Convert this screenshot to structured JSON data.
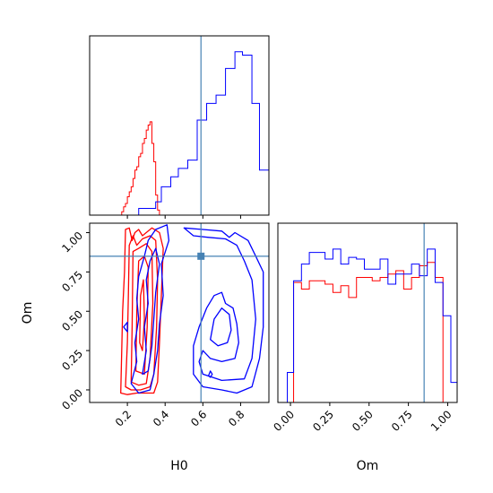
{
  "chart_data": {
    "type": "corner",
    "truth": {
      "H0": 0.59,
      "Om": 0.85,
      "color": "#4682b4"
    },
    "colors": {
      "series_a": "#ff0000",
      "series_b": "#0000ff",
      "truth": "#4682b4"
    },
    "panels": [
      {
        "id": "hist-H0",
        "type": "histogram",
        "xlim": [
          0.0,
          0.95
        ],
        "xlabel": "",
        "xticks": [
          0.2,
          0.4,
          0.6,
          0.8
        ],
        "show_xticklabels": false,
        "series": [
          {
            "color": "#ff0000",
            "bins": [
              0.16,
              0.17,
              0.18,
              0.19,
              0.2,
              0.21,
              0.22,
              0.23,
              0.24,
              0.25,
              0.26,
              0.27,
              0.28,
              0.29,
              0.3,
              0.31,
              0.32,
              0.33,
              0.34,
              0.35,
              0.36,
              0.37
            ],
            "heights": [
              0.0,
              0.02,
              0.05,
              0.07,
              0.11,
              0.14,
              0.17,
              0.22,
              0.27,
              0.29,
              0.35,
              0.37,
              0.43,
              0.46,
              0.51,
              0.54,
              0.56,
              0.43,
              0.32,
              0.12,
              0.03
            ]
          },
          {
            "color": "#0000ff",
            "bins": [
              0.17,
              0.26,
              0.35,
              0.38,
              0.43,
              0.47,
              0.52,
              0.57,
              0.62,
              0.67,
              0.72,
              0.77,
              0.81,
              0.86,
              0.9,
              0.95
            ],
            "heights": [
              0.0,
              0.04,
              0.08,
              0.17,
              0.23,
              0.28,
              0.33,
              0.57,
              0.67,
              0.72,
              0.88,
              0.98,
              0.96,
              0.67,
              0.27,
              0.05
            ]
          }
        ]
      },
      {
        "id": "contour-H0-Om",
        "type": "contour",
        "xlim": [
          0.0,
          0.95
        ],
        "ylim": [
          -0.08,
          1.06
        ],
        "xlabel": "H0",
        "ylabel": "Om",
        "xticks": [
          0.2,
          0.4,
          0.6,
          0.8
        ],
        "xticklabels": [
          "0.2",
          "0.4",
          "0.6",
          "0.8"
        ],
        "yticks": [
          0.0,
          0.25,
          0.5,
          0.75,
          1.0
        ],
        "yticklabels": [
          "0.00",
          "0.25",
          "0.50",
          "0.75",
          "1.00"
        ],
        "series": [
          {
            "color": "#ff0000",
            "contours": [
              [
                [
                  0.165,
                  -0.02
                ],
                [
                  0.17,
                  0.25
                ],
                [
                  0.175,
                  0.5
                ],
                [
                  0.185,
                  0.75
                ],
                [
                  0.19,
                  1.02
                ],
                [
                  0.21,
                  1.03
                ],
                [
                  0.225,
                  0.95
                ],
                [
                  0.24,
                  1.0
                ],
                [
                  0.26,
                  1.02
                ],
                [
                  0.28,
                  0.98
                ],
                [
                  0.31,
                  1.01
                ],
                [
                  0.33,
                  1.03
                ],
                [
                  0.37,
                  1.0
                ],
                [
                  0.39,
                  0.9
                ],
                [
                  0.38,
                  0.6
                ],
                [
                  0.37,
                  0.3
                ],
                [
                  0.36,
                  0.05
                ],
                [
                  0.34,
                  -0.02
                ],
                [
                  0.3,
                  -0.02
                ],
                [
                  0.25,
                  -0.02
                ],
                [
                  0.2,
                  -0.03
                ],
                [
                  0.165,
                  -0.02
                ]
              ],
              [
                [
                  0.19,
                  0.02
                ],
                [
                  0.2,
                  0.3
                ],
                [
                  0.205,
                  0.6
                ],
                [
                  0.21,
                  0.92
                ],
                [
                  0.23,
                  0.98
                ],
                [
                  0.25,
                  0.92
                ],
                [
                  0.28,
                  0.96
                ],
                [
                  0.32,
                  0.98
                ],
                [
                  0.35,
                  0.95
                ],
                [
                  0.36,
                  0.7
                ],
                [
                  0.355,
                  0.4
                ],
                [
                  0.34,
                  0.1
                ],
                [
                  0.32,
                  0.02
                ],
                [
                  0.27,
                  0.0
                ],
                [
                  0.22,
                  0.0
                ],
                [
                  0.19,
                  0.02
                ]
              ],
              [
                [
                  0.22,
                  0.05
                ],
                [
                  0.225,
                  0.4
                ],
                [
                  0.23,
                  0.88
                ],
                [
                  0.26,
                  0.9
                ],
                [
                  0.3,
                  0.93
                ],
                [
                  0.33,
                  0.88
                ],
                [
                  0.335,
                  0.55
                ],
                [
                  0.32,
                  0.2
                ],
                [
                  0.3,
                  0.04
                ],
                [
                  0.26,
                  0.03
                ],
                [
                  0.22,
                  0.05
                ]
              ],
              [
                [
                  0.245,
                  0.12
                ],
                [
                  0.25,
                  0.5
                ],
                [
                  0.26,
                  0.82
                ],
                [
                  0.29,
                  0.85
                ],
                [
                  0.31,
                  0.78
                ],
                [
                  0.305,
                  0.4
                ],
                [
                  0.29,
                  0.1
                ],
                [
                  0.245,
                  0.12
                ]
              ],
              [
                [
                  0.265,
                  0.3
                ],
                [
                  0.27,
                  0.6
                ],
                [
                  0.285,
                  0.7
                ],
                [
                  0.29,
                  0.45
                ],
                [
                  0.28,
                  0.25
                ],
                [
                  0.265,
                  0.3
                ]
              ]
            ]
          },
          {
            "color": "#0000ff",
            "contours": [
              [
                [
                  0.22,
                  0.04
                ],
                [
                  0.25,
                  0.18
                ],
                [
                  0.24,
                  0.3
                ],
                [
                  0.26,
                  0.45
                ],
                [
                  0.25,
                  0.58
                ],
                [
                  0.26,
                  0.72
                ],
                [
                  0.29,
                  0.85
                ],
                [
                  0.31,
                  0.95
                ],
                [
                  0.35,
                  1.02
                ],
                [
                  0.41,
                  1.05
                ],
                [
                  0.42,
                  0.95
                ],
                [
                  0.38,
                  0.8
                ],
                [
                  0.39,
                  0.6
                ],
                [
                  0.37,
                  0.42
                ],
                [
                  0.36,
                  0.25
                ],
                [
                  0.34,
                  0.1
                ],
                [
                  0.32,
                  0.0
                ],
                [
                  0.26,
                  -0.02
                ],
                [
                  0.22,
                  0.04
                ]
              ],
              [
                [
                  0.28,
                  0.1
                ],
                [
                  0.3,
                  0.25
                ],
                [
                  0.29,
                  0.4
                ],
                [
                  0.31,
                  0.55
                ],
                [
                  0.3,
                  0.7
                ],
                [
                  0.32,
                  0.82
                ],
                [
                  0.35,
                  0.9
                ],
                [
                  0.37,
                  0.8
                ],
                [
                  0.35,
                  0.62
                ],
                [
                  0.34,
                  0.45
                ],
                [
                  0.33,
                  0.28
                ],
                [
                  0.31,
                  0.12
                ],
                [
                  0.28,
                  0.1
                ]
              ],
              [
                [
                  0.5,
                  1.03
                ],
                [
                  0.6,
                  1.02
                ],
                [
                  0.7,
                  1.01
                ],
                [
                  0.74,
                  0.97
                ],
                [
                  0.77,
                  1.0
                ],
                [
                  0.84,
                  0.95
                ],
                [
                  0.88,
                  0.85
                ],
                [
                  0.92,
                  0.75
                ],
                [
                  0.92,
                  0.4
                ],
                [
                  0.9,
                  0.2
                ],
                [
                  0.86,
                  0.02
                ],
                [
                  0.78,
                  -0.02
                ],
                [
                  0.7,
                  0.0
                ],
                [
                  0.6,
                  0.02
                ],
                [
                  0.55,
                  0.1
                ],
                [
                  0.55,
                  0.28
                ],
                [
                  0.58,
                  0.4
                ],
                [
                  0.62,
                  0.52
                ],
                [
                  0.66,
                  0.6
                ],
                [
                  0.7,
                  0.62
                ],
                [
                  0.72,
                  0.55
                ],
                [
                  0.76,
                  0.52
                ],
                [
                  0.78,
                  0.42
                ],
                [
                  0.79,
                  0.3
                ],
                [
                  0.77,
                  0.2
                ],
                [
                  0.7,
                  0.18
                ],
                [
                  0.64,
                  0.2
                ],
                [
                  0.6,
                  0.25
                ],
                [
                  0.58,
                  0.18
                ],
                [
                  0.6,
                  0.1
                ],
                [
                  0.7,
                  0.06
                ],
                [
                  0.82,
                  0.07
                ],
                [
                  0.86,
                  0.2
                ],
                [
                  0.88,
                  0.45
                ],
                [
                  0.86,
                  0.7
                ],
                [
                  0.82,
                  0.82
                ],
                [
                  0.78,
                  0.92
                ],
                [
                  0.72,
                  0.96
                ],
                [
                  0.63,
                  0.97
                ],
                [
                  0.55,
                  0.98
                ],
                [
                  0.5,
                  1.03
                ]
              ],
              [
                [
                  0.64,
                  0.32
                ],
                [
                  0.66,
                  0.45
                ],
                [
                  0.7,
                  0.52
                ],
                [
                  0.74,
                  0.48
                ],
                [
                  0.75,
                  0.38
                ],
                [
                  0.73,
                  0.3
                ],
                [
                  0.68,
                  0.28
                ],
                [
                  0.64,
                  0.32
                ]
              ],
              [
                [
                  0.63,
                  0.09
                ],
                [
                  0.64,
                  0.12
                ],
                [
                  0.65,
                  0.1
                ],
                [
                  0.64,
                  0.08
                ],
                [
                  0.63,
                  0.09
                ]
              ],
              [
                [
                  0.18,
                  0.4
                ],
                [
                  0.2,
                  0.43
                ],
                [
                  0.2,
                  0.37
                ],
                [
                  0.18,
                  0.4
                ]
              ]
            ]
          }
        ]
      },
      {
        "id": "hist-Om",
        "type": "histogram",
        "xlim": [
          -0.08,
          1.06
        ],
        "xlabel": "Om",
        "xticks": [
          0.0,
          0.25,
          0.5,
          0.75,
          1.0
        ],
        "xticklabels": [
          "0.00",
          "0.25",
          "0.50",
          "0.75",
          "1.00"
        ],
        "show_xticklabels": true,
        "series": [
          {
            "color": "#ff0000",
            "bins": [
              -0.02,
              0.02,
              0.07,
              0.12,
              0.17,
              0.22,
              0.27,
              0.32,
              0.37,
              0.42,
              0.47,
              0.52,
              0.57,
              0.62,
              0.67,
              0.72,
              0.77,
              0.82,
              0.87,
              0.92,
              0.97,
              1.02
            ],
            "heights": [
              0.0,
              0.72,
              0.68,
              0.73,
              0.73,
              0.71,
              0.66,
              0.7,
              0.63,
              0.75,
              0.75,
              0.73,
              0.75,
              0.77,
              0.79,
              0.68,
              0.75,
              0.82,
              0.84,
              0.75,
              0.0
            ]
          },
          {
            "color": "#0000ff",
            "bins": [
              -0.08,
              -0.02,
              0.02,
              0.07,
              0.12,
              0.17,
              0.22,
              0.27,
              0.32,
              0.37,
              0.42,
              0.47,
              0.52,
              0.57,
              0.62,
              0.67,
              0.72,
              0.77,
              0.82,
              0.87,
              0.92,
              0.97,
              1.02,
              1.06
            ],
            "heights": [
              0.0,
              0.18,
              0.73,
              0.83,
              0.9,
              0.9,
              0.86,
              0.92,
              0.83,
              0.87,
              0.86,
              0.8,
              0.8,
              0.86,
              0.71,
              0.77,
              0.77,
              0.83,
              0.76,
              0.92,
              0.72,
              0.52,
              0.12
            ]
          }
        ]
      }
    ]
  }
}
